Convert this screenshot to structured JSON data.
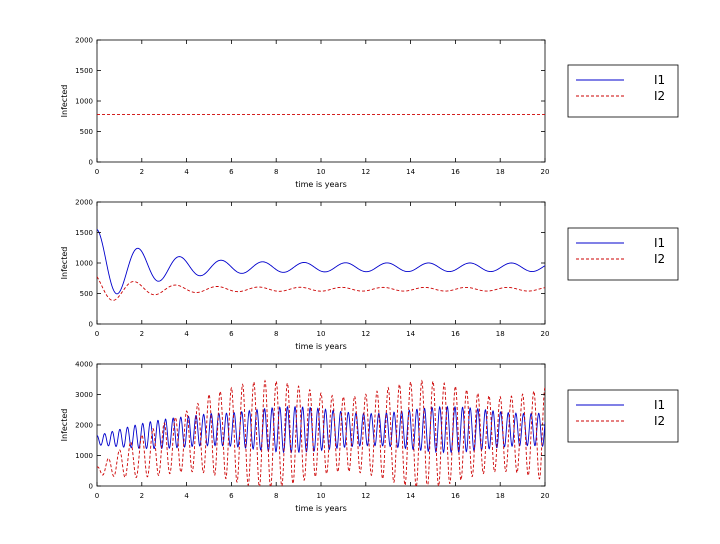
{
  "chart_data": [
    {
      "type": "line",
      "xlabel": "time is years",
      "ylabel": "Infected",
      "xlim": [
        0,
        20
      ],
      "ylim": [
        0,
        2000
      ],
      "xticks": [
        0,
        2,
        4,
        6,
        8,
        10,
        12,
        14,
        16,
        18,
        20
      ],
      "yticks": [
        0,
        500,
        1000,
        1500,
        2000
      ],
      "legend_position": "right-outside",
      "series": [
        {
          "name": "I1",
          "color": "#0000cc",
          "style": "solid",
          "pattern": "none"
        },
        {
          "name": "I2",
          "color": "#cc0000",
          "style": "dashed",
          "pattern": "constant",
          "value": 780
        }
      ]
    },
    {
      "type": "line",
      "xlabel": "time is years",
      "ylabel": "Infected",
      "xlim": [
        0,
        20
      ],
      "ylim": [
        0,
        2000
      ],
      "xticks": [
        0,
        2,
        4,
        6,
        8,
        10,
        12,
        14,
        16,
        18,
        20
      ],
      "yticks": [
        0,
        500,
        1000,
        1500,
        2000
      ],
      "legend_position": "right-outside",
      "series": [
        {
          "name": "I1",
          "color": "#0000cc",
          "style": "solid",
          "pattern": "damped",
          "mean": 930,
          "amp0": 620,
          "ampEnd": 70,
          "decay": 0.45,
          "period": 1.85
        },
        {
          "name": "I2",
          "color": "#cc0000",
          "style": "dashed",
          "pattern": "damped",
          "mean": 570,
          "amp0": 250,
          "ampEnd": 30,
          "decay": 0.5,
          "period": 1.85
        }
      ]
    },
    {
      "type": "line",
      "xlabel": "time is years",
      "ylabel": "Infected",
      "xlim": [
        0,
        20
      ],
      "ylim": [
        0,
        4000
      ],
      "xticks": [
        0,
        2,
        4,
        6,
        8,
        10,
        12,
        14,
        16,
        18,
        20
      ],
      "yticks": [
        0,
        1000,
        2000,
        3000,
        4000
      ],
      "legend_position": "right-outside",
      "series": [
        {
          "name": "I1",
          "color": "#0000cc",
          "style": "solid",
          "pattern": "growing",
          "mean0": 1500,
          "mean1": 1850,
          "amp0": 180,
          "amp1": 750,
          "period": 0.34
        },
        {
          "name": "I2",
          "color": "#cc0000",
          "style": "dashed",
          "pattern": "growing",
          "mean0": 500,
          "mean1": 1700,
          "amp0": 120,
          "amp1": 1750,
          "period": 0.5
        }
      ]
    }
  ]
}
